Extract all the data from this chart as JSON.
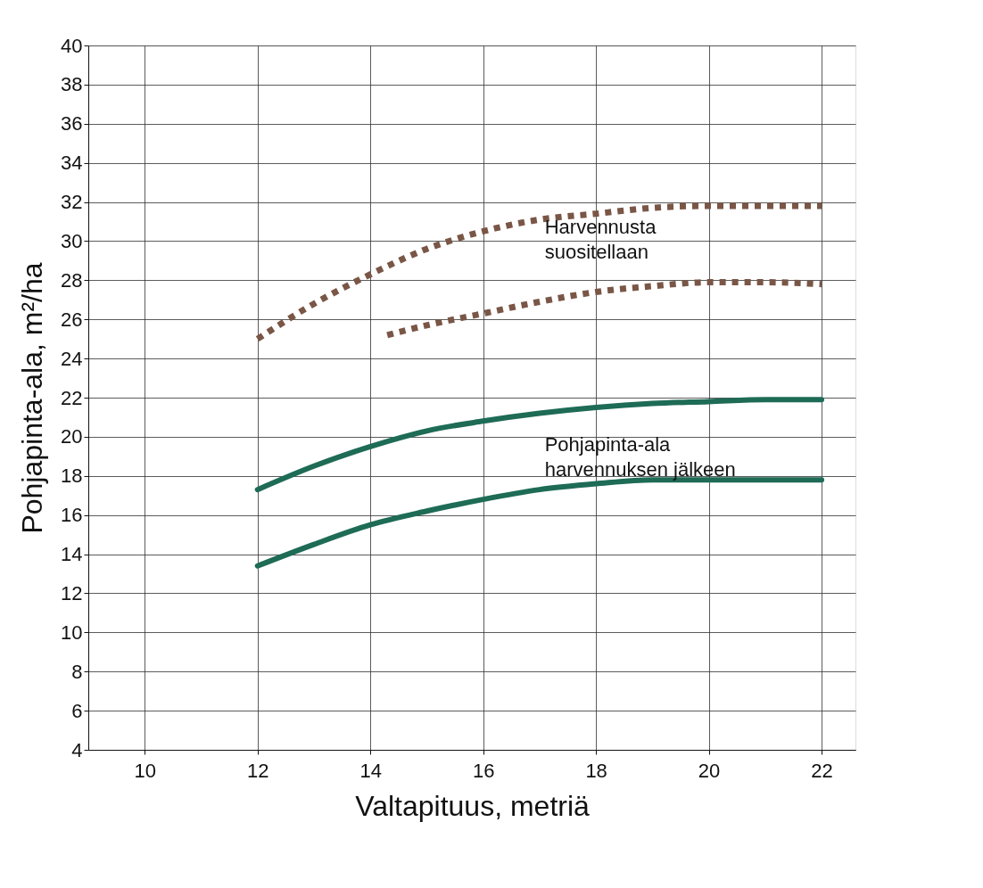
{
  "chart_data": {
    "type": "line",
    "xlabel": "Valtapituus, metriä",
    "ylabel": "Pohjapinta-ala, m²/ha",
    "xlim": [
      9,
      22.6
    ],
    "xticks": [
      10,
      12,
      14,
      16,
      18,
      20,
      22
    ],
    "ylim": [
      4,
      40
    ],
    "yticks": [
      4,
      6,
      8,
      10,
      12,
      14,
      16,
      18,
      20,
      22,
      24,
      26,
      28,
      30,
      32,
      34,
      36,
      38,
      40
    ],
    "grid": true,
    "series": [
      {
        "color": "#7a5646",
        "line_style": "dotted",
        "x": [
          12,
          13,
          14,
          15,
          16,
          17,
          18,
          19,
          20,
          21,
          22
        ],
        "values": [
          25.0,
          26.8,
          28.3,
          29.6,
          30.5,
          31.1,
          31.4,
          31.7,
          31.8,
          31.8,
          31.8
        ]
      },
      {
        "color": "#7a5646",
        "line_style": "dotted",
        "x": [
          14.3,
          15,
          16,
          17,
          18,
          19,
          20,
          21,
          22
        ],
        "values": [
          25.2,
          25.7,
          26.3,
          26.9,
          27.4,
          27.7,
          27.9,
          27.9,
          27.8
        ]
      },
      {
        "color": "#1e6b56",
        "line_style": "solid",
        "x": [
          12,
          13,
          14,
          15,
          16,
          17,
          18,
          19,
          20,
          21,
          22
        ],
        "values": [
          17.3,
          18.5,
          19.5,
          20.3,
          20.8,
          21.2,
          21.5,
          21.7,
          21.8,
          21.9,
          21.9
        ]
      },
      {
        "color": "#1e6b56",
        "line_style": "solid",
        "x": [
          12,
          13,
          14,
          15,
          16,
          17,
          18,
          19,
          20,
          21,
          22
        ],
        "values": [
          13.4,
          14.5,
          15.5,
          16.2,
          16.8,
          17.3,
          17.6,
          17.8,
          17.8,
          17.8,
          17.8
        ]
      }
    ],
    "annotations": [
      "Harvennusta\nsuositellaan",
      "Pohjapinta-ala\nharvennuksen jälkeen"
    ]
  }
}
